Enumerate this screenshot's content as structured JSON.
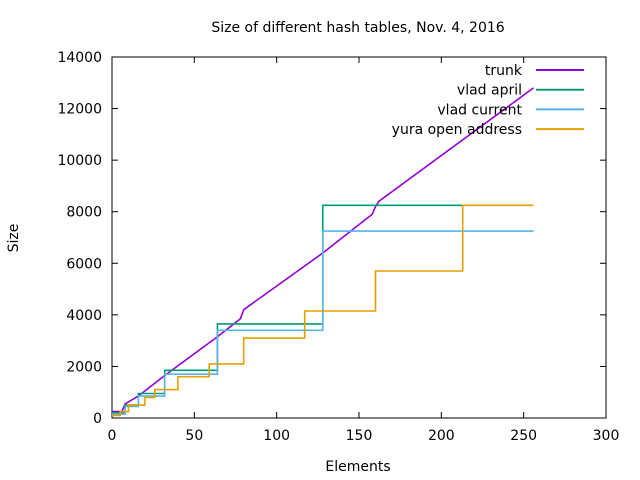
{
  "chart_data": {
    "type": "line",
    "title": "Size of different hash tables, Nov. 4, 2016",
    "xlabel": "Elements",
    "ylabel": "Size",
    "xlim": [
      0,
      300
    ],
    "ylim": [
      0,
      14000
    ],
    "xticks": [
      0,
      50,
      100,
      150,
      200,
      250,
      300
    ],
    "yticks": [
      0,
      2000,
      4000,
      6000,
      8000,
      10000,
      12000,
      14000
    ],
    "grid": false,
    "legend_position": "top-right",
    "series": [
      {
        "name": "trunk",
        "color": "#9400d3",
        "x": [
          0,
          6,
          8,
          16,
          32,
          64,
          78,
          80,
          128,
          158,
          160,
          162,
          256
        ],
        "y": [
          250,
          250,
          550,
          850,
          1650,
          3150,
          3850,
          4200,
          6400,
          7900,
          8200,
          8400,
          12800
        ]
      },
      {
        "name": "vlad april",
        "color": "#009e73",
        "x": [
          0,
          8,
          8,
          16,
          16,
          32,
          32,
          64,
          64,
          128,
          128,
          213
        ],
        "y": [
          200,
          200,
          500,
          500,
          950,
          950,
          1850,
          1850,
          3650,
          3650,
          8250,
          8250
        ]
      },
      {
        "name": "vlad current",
        "color": "#56b4e9",
        "x": [
          0,
          8,
          8,
          16,
          16,
          32,
          32,
          64,
          64,
          128,
          128,
          256
        ],
        "y": [
          150,
          150,
          450,
          450,
          850,
          850,
          1700,
          1700,
          3400,
          3400,
          7250,
          7250
        ]
      },
      {
        "name": "yura open address",
        "color": "#e69f00",
        "x": [
          0,
          5,
          5,
          10,
          10,
          20,
          20,
          26,
          26,
          40,
          40,
          59,
          59,
          80,
          80,
          117,
          117,
          160,
          160,
          213,
          213,
          256
        ],
        "y": [
          100,
          100,
          250,
          250,
          500,
          500,
          800,
          800,
          1100,
          1100,
          1600,
          1600,
          2100,
          2100,
          3100,
          3100,
          4150,
          4150,
          5700,
          5700,
          8250,
          8250
        ]
      }
    ]
  }
}
